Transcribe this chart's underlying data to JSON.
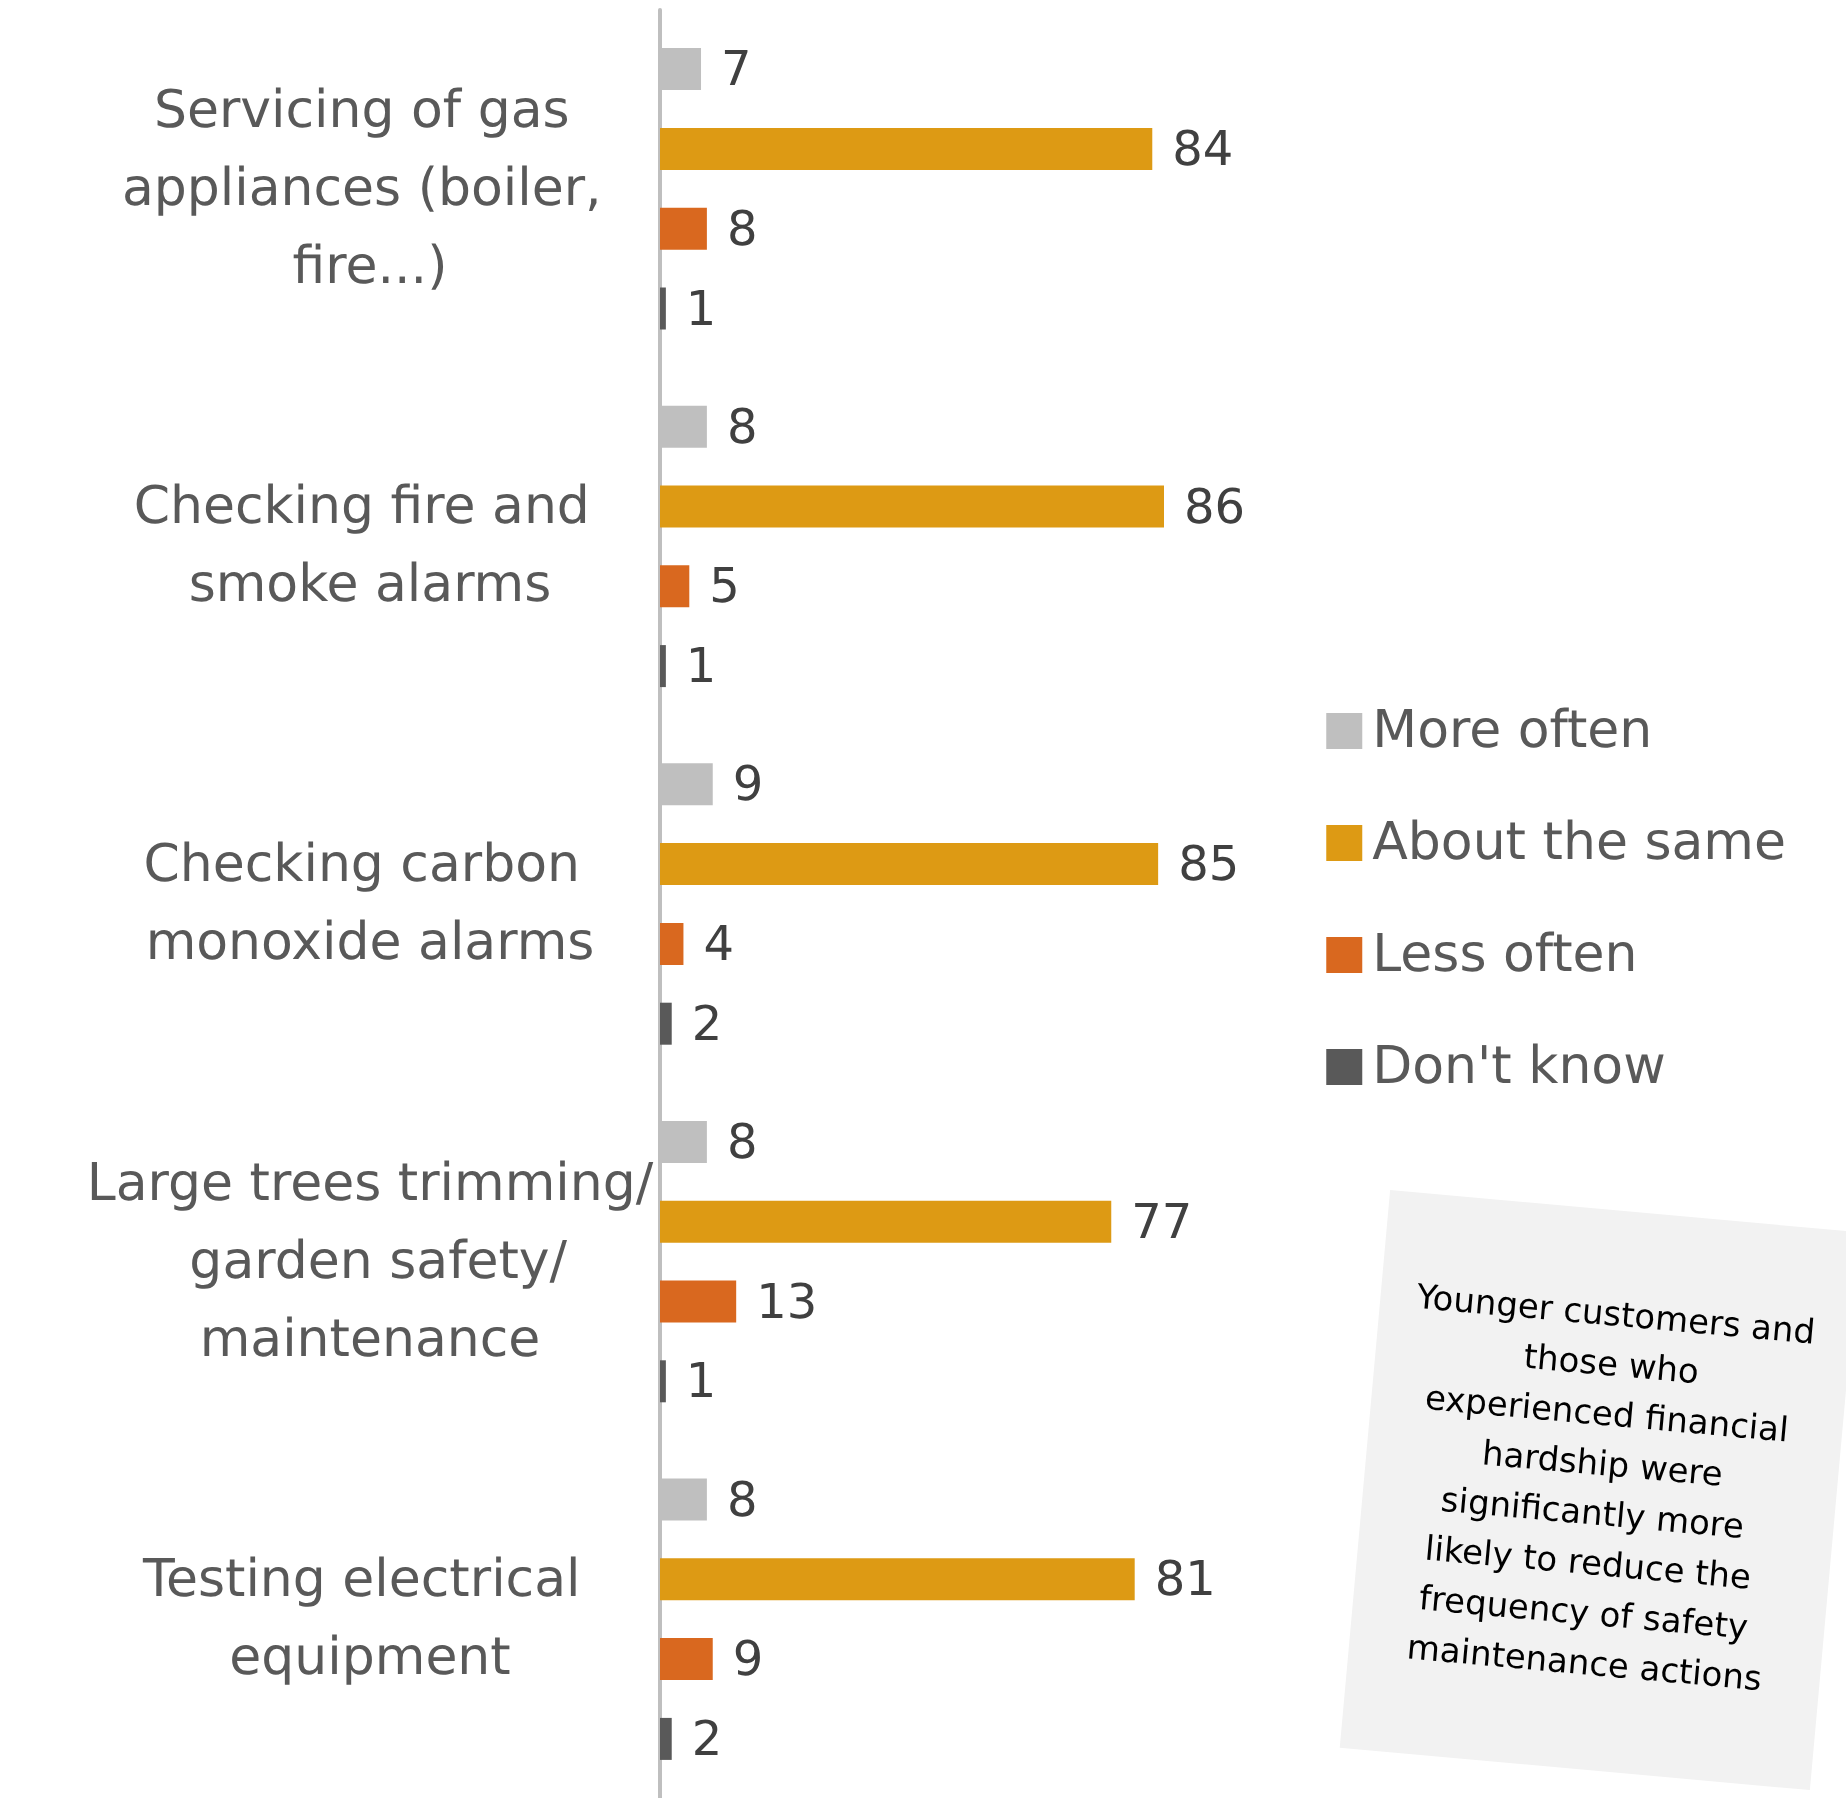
{
  "chart_data": {
    "type": "bar",
    "orientation": "horizontal",
    "data_labels": true,
    "legend": "right",
    "categories": [
      "Servicing of gas appliances (boiler, fire...)",
      "Checking fire and smoke alarms",
      "Checking carbon monoxide alarms",
      "Large trees trimming/ garden safety/maintenance",
      "Testing electrical equipment"
    ],
    "series": [
      {
        "name": "More often",
        "color": "#bfbfbf",
        "values": [
          7,
          8,
          9,
          8,
          8
        ]
      },
      {
        "name": "About the same",
        "color": "#dd9a14",
        "values": [
          84,
          86,
          85,
          77,
          81
        ]
      },
      {
        "name": "Less often",
        "color": "#d9681f",
        "values": [
          8,
          5,
          4,
          13,
          9
        ]
      },
      {
        "name": "Don't know",
        "color": "#595959",
        "values": [
          1,
          1,
          2,
          1,
          2
        ]
      }
    ],
    "annotations": [
      "Younger customers and those who experienced financial hardship were significantly more likely to reduce the frequency of safety maintenance actions"
    ]
  }
}
